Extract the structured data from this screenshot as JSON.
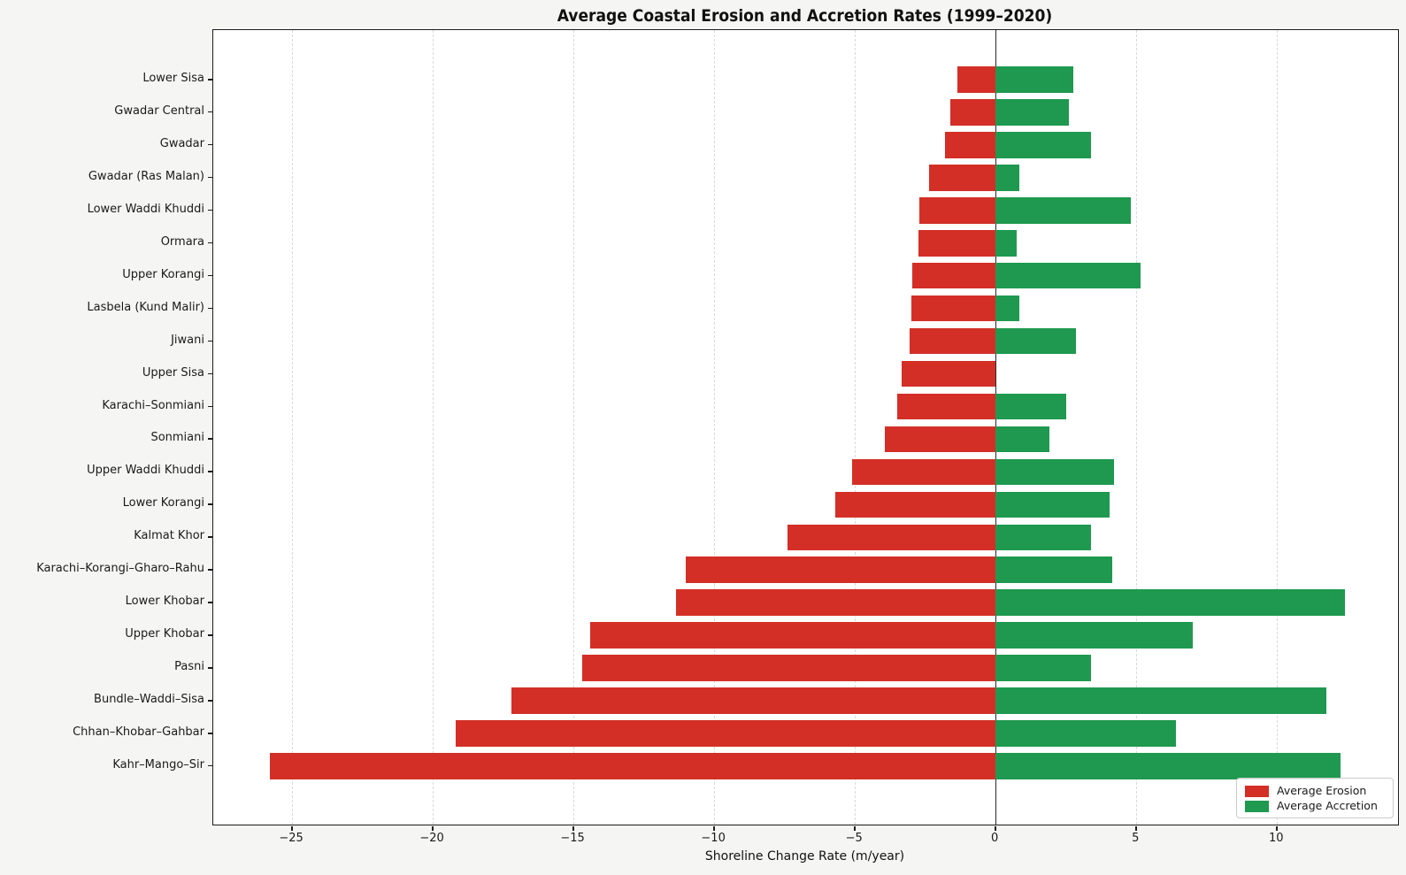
{
  "chart_data": {
    "type": "bar",
    "orientation": "horizontal-diverging",
    "title": "Average Coastal Erosion and Accretion Rates (1999–2020)",
    "xlabel": "Shoreline Change Rate (m/year)",
    "ylabel": "",
    "categories": [
      "Lower Sisa",
      "Gwadar Central",
      "Gwadar",
      "Gwadar (Ras Malan)",
      "Lower Waddi Khuddi",
      "Ormara",
      "Upper Korangi",
      "Lasbela (Kund Malir)",
      "Jiwani",
      "Upper Sisa",
      "Karachi–Sonmiani",
      "Sonmiani",
      "Upper Waddi Khuddi",
      "Lower Korangi",
      "Kalmat Khor",
      "Karachi–Korangi–Gharo–Rahu",
      "Lower Khobar",
      "Upper Khobar",
      "Pasni",
      "Bundle–Waddi–Sisa",
      "Chhan–Khobar–Gahbar",
      "Kahr–Mango–Sir"
    ],
    "series": [
      {
        "name": "Average Erosion",
        "color": "#d32f27",
        "values": [
          -1.35,
          -1.6,
          -1.8,
          -2.35,
          -2.7,
          -2.75,
          -2.95,
          -3.0,
          -3.05,
          -3.35,
          -3.5,
          -3.95,
          -5.1,
          -5.7,
          -7.4,
          -11.0,
          -11.35,
          -14.4,
          -14.7,
          -17.2,
          -19.2,
          -25.8
        ]
      },
      {
        "name": "Average Accretion",
        "color": "#1e994f",
        "values": [
          2.75,
          2.6,
          3.4,
          0.85,
          4.8,
          0.75,
          5.15,
          0.85,
          2.85,
          0.0,
          2.5,
          1.9,
          4.2,
          4.05,
          3.4,
          4.15,
          12.4,
          7.0,
          3.4,
          11.75,
          6.4,
          12.25
        ]
      }
    ],
    "xlim": [
      -27.8,
      14.3
    ],
    "xticks": {
      "values": [
        -25,
        -20,
        -15,
        -10,
        -5,
        0,
        5,
        10
      ],
      "labels": [
        "−25",
        "−20",
        "−15",
        "−10",
        "−5",
        "0",
        "5",
        "10"
      ]
    },
    "grid": "vertical dashed gridlines, solid zero line",
    "legend_position": "lower right",
    "colors": {
      "figure_bg": "#f5f5f3",
      "plot_bg": "#ffffff",
      "grid": "#d9d9d9",
      "zero_line": "#2a2a2a",
      "spine": "#1c1c1c"
    }
  }
}
